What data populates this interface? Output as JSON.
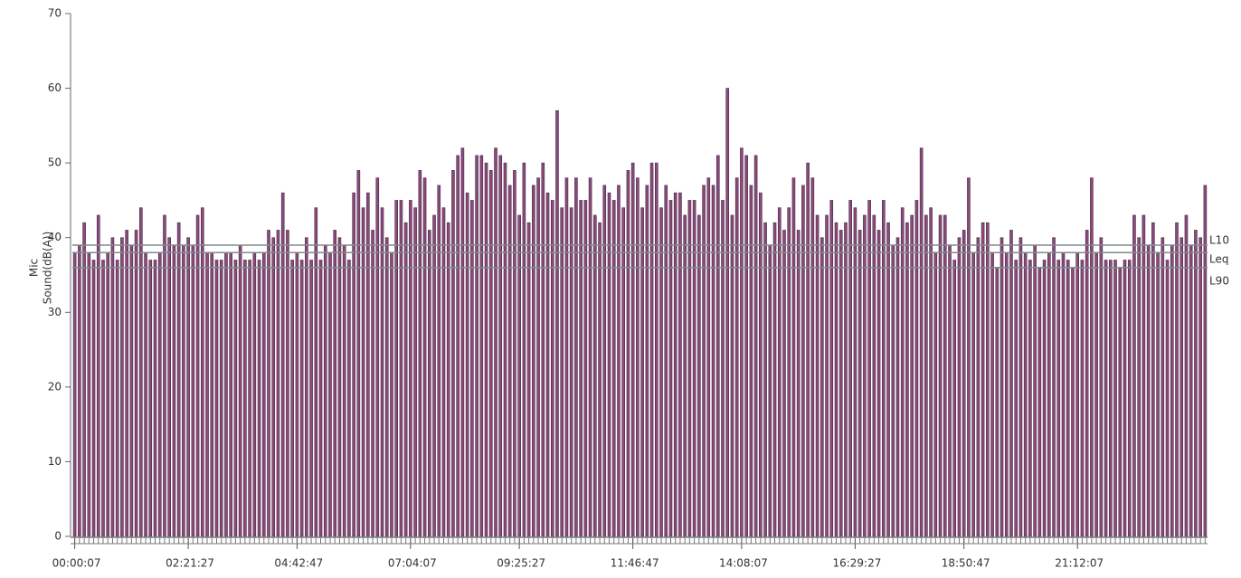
{
  "chart_data": {
    "type": "bar",
    "ylabel": [
      "Mic",
      "Sound(dB(A))"
    ],
    "color": "#8b4a7c",
    "edge_color": "#4a2a44",
    "ylim": [
      0,
      70
    ],
    "yticks": [
      0,
      10,
      20,
      30,
      40,
      50,
      60,
      70
    ],
    "reference_lines": [
      {
        "label": "L10",
        "value": 39,
        "color": "#7f8c8c"
      },
      {
        "label": "Leq",
        "value": 38,
        "color": "#7f8c8c"
      },
      {
        "label": "L90",
        "value": 36,
        "color": "#7f8c8c"
      }
    ],
    "categories": [
      "00:00:07",
      null,
      null,
      null,
      null,
      null,
      null,
      null,
      null,
      null,
      null,
      null,
      null,
      null,
      null,
      null,
      null,
      null,
      null,
      null,
      null,
      null,
      null,
      null,
      "02:21:27",
      null,
      null,
      null,
      null,
      null,
      null,
      null,
      null,
      null,
      null,
      null,
      null,
      null,
      null,
      null,
      null,
      null,
      null,
      null,
      null,
      null,
      null,
      "04:42:47",
      null,
      null,
      null,
      null,
      null,
      null,
      null,
      null,
      null,
      null,
      null,
      null,
      null,
      null,
      null,
      null,
      null,
      null,
      null,
      null,
      null,
      null,
      null,
      "07:04:07",
      null,
      null,
      null,
      null,
      null,
      null,
      null,
      null,
      null,
      null,
      null,
      null,
      null,
      null,
      null,
      null,
      null,
      null,
      null,
      null,
      null,
      null,
      "09:25:27",
      null,
      null,
      null,
      null,
      null,
      null,
      null,
      null,
      null,
      null,
      null,
      null,
      null,
      null,
      null,
      null,
      null,
      null,
      null,
      null,
      null,
      null,
      null,
      "11:46:47",
      null,
      null,
      null,
      null,
      null,
      null,
      null,
      null,
      null,
      null,
      null,
      null,
      null,
      null,
      null,
      null,
      null,
      null,
      null,
      null,
      null,
      null,
      "14:08:07",
      null,
      null,
      null,
      null,
      null,
      null,
      null,
      null,
      null,
      null,
      null,
      null,
      null,
      null,
      null,
      null,
      null,
      null,
      null,
      null,
      null,
      null,
      null,
      "16:29:27",
      null,
      null,
      null,
      null,
      null,
      null,
      null,
      null,
      null,
      null,
      null,
      null,
      null,
      null,
      null,
      null,
      null,
      null,
      null,
      null,
      null,
      null,
      "18:50:47",
      null,
      null,
      null,
      null,
      null,
      null,
      null,
      null,
      null,
      null,
      null,
      null,
      null,
      null,
      null,
      null,
      null,
      null,
      null,
      null,
      null,
      null,
      null,
      "21:12:07",
      null,
      null,
      null,
      null,
      null,
      null,
      null,
      null,
      null,
      null,
      null,
      null,
      null,
      null,
      null,
      null,
      null,
      null,
      null,
      null,
      null,
      null,
      null,
      null,
      null,
      null,
      null
    ],
    "values": [
      38,
      39,
      42,
      38,
      37,
      43,
      37,
      38,
      40,
      37,
      40,
      41,
      39,
      41,
      44,
      38,
      37,
      37,
      38,
      43,
      40,
      39,
      42,
      39,
      40,
      39,
      43,
      44,
      38,
      38,
      37,
      37,
      38,
      38,
      37,
      39,
      37,
      37,
      38,
      37,
      38,
      41,
      40,
      41,
      46,
      41,
      37,
      38,
      37,
      40,
      37,
      44,
      37,
      39,
      38,
      41,
      40,
      39,
      37,
      46,
      49,
      44,
      46,
      41,
      48,
      44,
      40,
      38,
      45,
      45,
      42,
      45,
      44,
      49,
      48,
      41,
      43,
      47,
      44,
      42,
      49,
      51,
      52,
      46,
      45,
      51,
      51,
      50,
      49,
      52,
      51,
      50,
      47,
      49,
      43,
      50,
      42,
      47,
      48,
      50,
      46,
      45,
      57,
      44,
      48,
      44,
      48,
      45,
      45,
      48,
      43,
      42,
      47,
      46,
      45,
      47,
      44,
      49,
      50,
      48,
      44,
      47,
      50,
      50,
      44,
      47,
      45,
      46,
      46,
      43,
      45,
      45,
      43,
      47,
      48,
      47,
      51,
      45,
      60,
      43,
      48,
      52,
      51,
      47,
      51,
      46,
      42,
      39,
      42,
      44,
      41,
      44,
      48,
      41,
      47,
      50,
      48,
      43,
      40,
      43,
      45,
      42,
      41,
      42,
      45,
      44,
      41,
      43,
      45,
      43,
      41,
      45,
      42,
      39,
      40,
      44,
      42,
      43,
      45,
      52,
      43,
      44,
      38,
      43,
      43,
      39,
      37,
      40,
      41,
      48,
      38,
      40,
      42,
      42,
      38,
      36,
      40,
      38,
      41,
      37,
      40,
      38,
      37,
      39,
      36,
      37,
      38,
      40,
      37,
      38,
      37,
      36,
      38,
      37,
      41,
      48,
      38,
      40,
      37,
      37,
      37,
      36,
      37,
      37,
      43,
      40,
      43,
      39,
      42,
      38,
      40,
      37,
      39,
      42,
      40,
      43,
      39,
      41,
      40,
      47
    ]
  }
}
